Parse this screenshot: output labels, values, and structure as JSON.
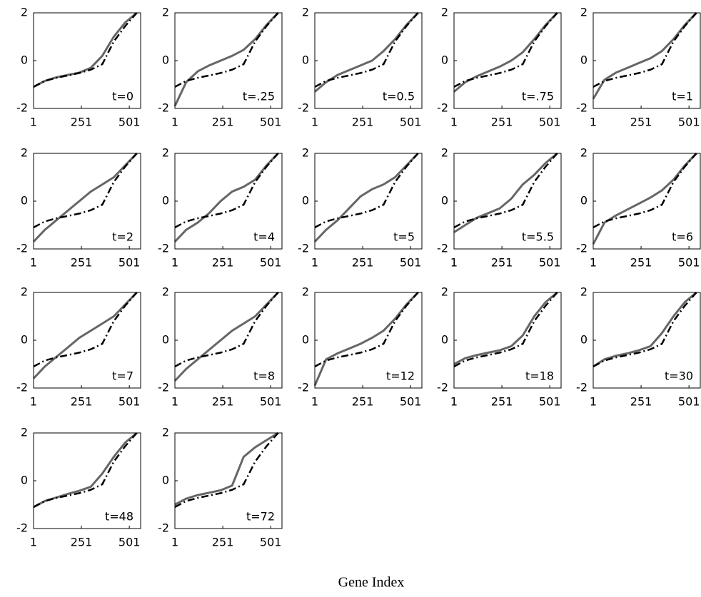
{
  "figure": {
    "xlabel": "Gene Index"
  },
  "chart_data": [
    {
      "type": "line",
      "annotation": "t=0",
      "x": [
        1,
        60,
        120,
        180,
        240,
        300,
        360,
        420,
        480,
        540
      ],
      "series": [
        {
          "color": "#666666",
          "style": "solid",
          "values": [
            -1.1,
            -0.85,
            -0.7,
            -0.6,
            -0.5,
            -0.3,
            0.2,
            1.0,
            1.6,
            2.0
          ]
        },
        {
          "color": "#000000",
          "style": "dashdot",
          "values": [
            -1.1,
            -0.85,
            -0.72,
            -0.62,
            -0.52,
            -0.38,
            -0.15,
            0.8,
            1.45,
            2.0
          ]
        }
      ],
      "xlim": [
        1,
        560
      ],
      "ylim": [
        -2,
        2
      ],
      "xticks": [
        1,
        251,
        501
      ],
      "yticks": [
        -2,
        0,
        2
      ]
    },
    {
      "type": "line",
      "annotation": "t=.25",
      "x": [
        1,
        60,
        120,
        180,
        240,
        300,
        360,
        420,
        480,
        540
      ],
      "series": [
        {
          "color": "#666666",
          "style": "solid",
          "values": [
            -1.9,
            -0.9,
            -0.45,
            -0.2,
            0.0,
            0.2,
            0.45,
            0.9,
            1.5,
            2.0
          ]
        },
        {
          "color": "#000000",
          "style": "dashdot",
          "values": [
            -1.1,
            -0.85,
            -0.72,
            -0.62,
            -0.52,
            -0.38,
            -0.15,
            0.8,
            1.45,
            2.0
          ]
        }
      ],
      "xlim": [
        1,
        560
      ],
      "ylim": [
        -2,
        2
      ],
      "xticks": [
        1,
        251,
        501
      ],
      "yticks": [
        -2,
        0,
        2
      ]
    },
    {
      "type": "line",
      "annotation": "t=0.5",
      "x": [
        1,
        60,
        120,
        180,
        240,
        300,
        360,
        420,
        480,
        540
      ],
      "series": [
        {
          "color": "#666666",
          "style": "solid",
          "values": [
            -1.3,
            -0.9,
            -0.6,
            -0.4,
            -0.2,
            0.0,
            0.4,
            0.9,
            1.5,
            2.0
          ]
        },
        {
          "color": "#000000",
          "style": "dashdot",
          "values": [
            -1.1,
            -0.85,
            -0.72,
            -0.62,
            -0.52,
            -0.38,
            -0.15,
            0.8,
            1.45,
            2.0
          ]
        }
      ],
      "xlim": [
        1,
        560
      ],
      "ylim": [
        -2,
        2
      ],
      "xticks": [
        1,
        251,
        501
      ],
      "yticks": [
        -2,
        0,
        2
      ]
    },
    {
      "type": "line",
      "annotation": "t=.75",
      "x": [
        1,
        60,
        120,
        180,
        240,
        300,
        360,
        420,
        480,
        540
      ],
      "series": [
        {
          "color": "#666666",
          "style": "solid",
          "values": [
            -1.3,
            -0.9,
            -0.65,
            -0.45,
            -0.25,
            0.0,
            0.35,
            0.9,
            1.5,
            2.0
          ]
        },
        {
          "color": "#000000",
          "style": "dashdot",
          "values": [
            -1.1,
            -0.85,
            -0.72,
            -0.62,
            -0.52,
            -0.38,
            -0.15,
            0.8,
            1.45,
            2.0
          ]
        }
      ],
      "xlim": [
        1,
        560
      ],
      "ylim": [
        -2,
        2
      ],
      "xticks": [
        1,
        251,
        501
      ],
      "yticks": [
        -2,
        0,
        2
      ]
    },
    {
      "type": "line",
      "annotation": "t=1",
      "x": [
        1,
        60,
        120,
        180,
        240,
        300,
        360,
        420,
        480,
        540
      ],
      "series": [
        {
          "color": "#666666",
          "style": "solid",
          "values": [
            -1.6,
            -0.8,
            -0.5,
            -0.3,
            -0.1,
            0.1,
            0.4,
            0.9,
            1.5,
            2.0
          ]
        },
        {
          "color": "#000000",
          "style": "dashdot",
          "values": [
            -1.1,
            -0.85,
            -0.72,
            -0.62,
            -0.52,
            -0.38,
            -0.15,
            0.8,
            1.45,
            2.0
          ]
        }
      ],
      "xlim": [
        1,
        560
      ],
      "ylim": [
        -2,
        2
      ],
      "xticks": [
        1,
        251,
        501
      ],
      "yticks": [
        -2,
        0,
        2
      ]
    },
    {
      "type": "line",
      "annotation": "t=2",
      "x": [
        1,
        60,
        120,
        180,
        240,
        300,
        360,
        420,
        480,
        540
      ],
      "series": [
        {
          "color": "#666666",
          "style": "solid",
          "values": [
            -1.7,
            -1.2,
            -0.8,
            -0.4,
            0.0,
            0.4,
            0.7,
            1.0,
            1.5,
            2.0
          ]
        },
        {
          "color": "#000000",
          "style": "dashdot",
          "values": [
            -1.1,
            -0.85,
            -0.72,
            -0.62,
            -0.52,
            -0.38,
            -0.15,
            0.8,
            1.45,
            2.0
          ]
        }
      ],
      "xlim": [
        1,
        560
      ],
      "ylim": [
        -2,
        2
      ],
      "xticks": [
        1,
        251,
        501
      ],
      "yticks": [
        -2,
        0,
        2
      ]
    },
    {
      "type": "line",
      "annotation": "t=4",
      "x": [
        1,
        60,
        120,
        180,
        240,
        300,
        360,
        420,
        480,
        540
      ],
      "series": [
        {
          "color": "#666666",
          "style": "solid",
          "values": [
            -1.7,
            -1.2,
            -0.9,
            -0.5,
            0.0,
            0.4,
            0.6,
            0.9,
            1.5,
            2.0
          ]
        },
        {
          "color": "#000000",
          "style": "dashdot",
          "values": [
            -1.1,
            -0.85,
            -0.72,
            -0.62,
            -0.52,
            -0.38,
            -0.15,
            0.8,
            1.45,
            2.0
          ]
        }
      ],
      "xlim": [
        1,
        560
      ],
      "ylim": [
        -2,
        2
      ],
      "xticks": [
        1,
        251,
        501
      ],
      "yticks": [
        -2,
        0,
        2
      ]
    },
    {
      "type": "line",
      "annotation": "t=5",
      "x": [
        1,
        60,
        120,
        180,
        240,
        300,
        360,
        420,
        480,
        540
      ],
      "series": [
        {
          "color": "#666666",
          "style": "solid",
          "values": [
            -1.7,
            -1.2,
            -0.8,
            -0.3,
            0.2,
            0.5,
            0.7,
            1.0,
            1.5,
            2.0
          ]
        },
        {
          "color": "#000000",
          "style": "dashdot",
          "values": [
            -1.1,
            -0.85,
            -0.72,
            -0.62,
            -0.52,
            -0.38,
            -0.15,
            0.8,
            1.45,
            2.0
          ]
        }
      ],
      "xlim": [
        1,
        560
      ],
      "ylim": [
        -2,
        2
      ],
      "xticks": [
        1,
        251,
        501
      ],
      "yticks": [
        -2,
        0,
        2
      ]
    },
    {
      "type": "line",
      "annotation": "t=5.5",
      "x": [
        1,
        60,
        120,
        180,
        240,
        300,
        360,
        420,
        480,
        540
      ],
      "series": [
        {
          "color": "#666666",
          "style": "solid",
          "values": [
            -1.3,
            -1.0,
            -0.7,
            -0.5,
            -0.3,
            0.1,
            0.7,
            1.1,
            1.6,
            2.0
          ]
        },
        {
          "color": "#000000",
          "style": "dashdot",
          "values": [
            -1.1,
            -0.85,
            -0.72,
            -0.62,
            -0.52,
            -0.38,
            -0.15,
            0.8,
            1.45,
            2.0
          ]
        }
      ],
      "xlim": [
        1,
        560
      ],
      "ylim": [
        -2,
        2
      ],
      "xticks": [
        1,
        251,
        501
      ],
      "yticks": [
        -2,
        0,
        2
      ]
    },
    {
      "type": "line",
      "annotation": "t=6",
      "x": [
        1,
        60,
        120,
        180,
        240,
        300,
        360,
        420,
        480,
        540
      ],
      "series": [
        {
          "color": "#666666",
          "style": "solid",
          "values": [
            -1.8,
            -0.9,
            -0.6,
            -0.35,
            -0.1,
            0.15,
            0.45,
            0.9,
            1.5,
            2.0
          ]
        },
        {
          "color": "#000000",
          "style": "dashdot",
          "values": [
            -1.1,
            -0.85,
            -0.72,
            -0.62,
            -0.52,
            -0.38,
            -0.15,
            0.8,
            1.45,
            2.0
          ]
        }
      ],
      "xlim": [
        1,
        560
      ],
      "ylim": [
        -2,
        2
      ],
      "xticks": [
        1,
        251,
        501
      ],
      "yticks": [
        -2,
        0,
        2
      ]
    },
    {
      "type": "line",
      "annotation": "t=7",
      "x": [
        1,
        60,
        120,
        180,
        240,
        300,
        360,
        420,
        480,
        540
      ],
      "series": [
        {
          "color": "#666666",
          "style": "solid",
          "values": [
            -1.6,
            -1.1,
            -0.7,
            -0.3,
            0.1,
            0.4,
            0.7,
            1.0,
            1.5,
            2.0
          ]
        },
        {
          "color": "#000000",
          "style": "dashdot",
          "values": [
            -1.1,
            -0.85,
            -0.72,
            -0.62,
            -0.52,
            -0.38,
            -0.15,
            0.8,
            1.45,
            2.0
          ]
        }
      ],
      "xlim": [
        1,
        560
      ],
      "ylim": [
        -2,
        2
      ],
      "xticks": [
        1,
        251,
        501
      ],
      "yticks": [
        -2,
        0,
        2
      ]
    },
    {
      "type": "line",
      "annotation": "t=8",
      "x": [
        1,
        60,
        120,
        180,
        240,
        300,
        360,
        420,
        480,
        540
      ],
      "series": [
        {
          "color": "#666666",
          "style": "solid",
          "values": [
            -1.7,
            -1.2,
            -0.8,
            -0.4,
            0.0,
            0.4,
            0.7,
            1.0,
            1.5,
            2.0
          ]
        },
        {
          "color": "#000000",
          "style": "dashdot",
          "values": [
            -1.1,
            -0.85,
            -0.72,
            -0.62,
            -0.52,
            -0.38,
            -0.15,
            0.8,
            1.45,
            2.0
          ]
        }
      ],
      "xlim": [
        1,
        560
      ],
      "ylim": [
        -2,
        2
      ],
      "xticks": [
        1,
        251,
        501
      ],
      "yticks": [
        -2,
        0,
        2
      ]
    },
    {
      "type": "line",
      "annotation": "t=12",
      "x": [
        1,
        60,
        120,
        180,
        240,
        300,
        360,
        420,
        480,
        540
      ],
      "series": [
        {
          "color": "#666666",
          "style": "solid",
          "values": [
            -1.9,
            -0.8,
            -0.55,
            -0.35,
            -0.15,
            0.1,
            0.4,
            0.9,
            1.5,
            2.0
          ]
        },
        {
          "color": "#000000",
          "style": "dashdot",
          "values": [
            -1.1,
            -0.85,
            -0.72,
            -0.62,
            -0.52,
            -0.38,
            -0.15,
            0.8,
            1.45,
            2.0
          ]
        }
      ],
      "xlim": [
        1,
        560
      ],
      "ylim": [
        -2,
        2
      ],
      "xticks": [
        1,
        251,
        501
      ],
      "yticks": [
        -2,
        0,
        2
      ]
    },
    {
      "type": "line",
      "annotation": "t=18",
      "x": [
        1,
        60,
        120,
        180,
        240,
        300,
        360,
        420,
        480,
        540
      ],
      "series": [
        {
          "color": "#666666",
          "style": "solid",
          "values": [
            -1.0,
            -0.75,
            -0.62,
            -0.52,
            -0.42,
            -0.25,
            0.2,
            1.0,
            1.6,
            2.0
          ]
        },
        {
          "color": "#000000",
          "style": "dashdot",
          "values": [
            -1.1,
            -0.85,
            -0.72,
            -0.62,
            -0.52,
            -0.38,
            -0.15,
            0.8,
            1.45,
            2.0
          ]
        }
      ],
      "xlim": [
        1,
        560
      ],
      "ylim": [
        -2,
        2
      ],
      "xticks": [
        1,
        251,
        501
      ],
      "yticks": [
        -2,
        0,
        2
      ]
    },
    {
      "type": "line",
      "annotation": "t=30",
      "x": [
        1,
        60,
        120,
        180,
        240,
        300,
        360,
        420,
        480,
        540
      ],
      "series": [
        {
          "color": "#666666",
          "style": "solid",
          "values": [
            -1.1,
            -0.8,
            -0.65,
            -0.55,
            -0.42,
            -0.25,
            0.3,
            1.0,
            1.6,
            2.0
          ]
        },
        {
          "color": "#000000",
          "style": "dashdot",
          "values": [
            -1.1,
            -0.85,
            -0.72,
            -0.62,
            -0.52,
            -0.38,
            -0.15,
            0.8,
            1.45,
            2.0
          ]
        }
      ],
      "xlim": [
        1,
        560
      ],
      "ylim": [
        -2,
        2
      ],
      "xticks": [
        1,
        251,
        501
      ],
      "yticks": [
        -2,
        0,
        2
      ]
    },
    {
      "type": "line",
      "annotation": "t=48",
      "x": [
        1,
        60,
        120,
        180,
        240,
        300,
        360,
        420,
        480,
        540
      ],
      "series": [
        {
          "color": "#666666",
          "style": "solid",
          "values": [
            -1.1,
            -0.85,
            -0.7,
            -0.55,
            -0.42,
            -0.25,
            0.3,
            1.0,
            1.6,
            2.0
          ]
        },
        {
          "color": "#000000",
          "style": "dashdot",
          "values": [
            -1.1,
            -0.85,
            -0.72,
            -0.62,
            -0.52,
            -0.38,
            -0.15,
            0.8,
            1.45,
            2.0
          ]
        }
      ],
      "xlim": [
        1,
        560
      ],
      "ylim": [
        -2,
        2
      ],
      "xticks": [
        1,
        251,
        501
      ],
      "yticks": [
        -2,
        0,
        2
      ]
    },
    {
      "type": "line",
      "annotation": "t=72",
      "x": [
        1,
        60,
        120,
        180,
        240,
        300,
        360,
        420,
        480,
        540
      ],
      "series": [
        {
          "color": "#666666",
          "style": "solid",
          "values": [
            -1.0,
            -0.75,
            -0.6,
            -0.5,
            -0.4,
            -0.2,
            1.0,
            1.4,
            1.7,
            2.0
          ]
        },
        {
          "color": "#000000",
          "style": "dashdot",
          "values": [
            -1.1,
            -0.85,
            -0.72,
            -0.62,
            -0.52,
            -0.38,
            -0.15,
            0.8,
            1.45,
            2.0
          ]
        }
      ],
      "xlim": [
        1,
        560
      ],
      "ylim": [
        -2,
        2
      ],
      "xticks": [
        1,
        251,
        501
      ],
      "yticks": [
        -2,
        0,
        2
      ]
    }
  ]
}
